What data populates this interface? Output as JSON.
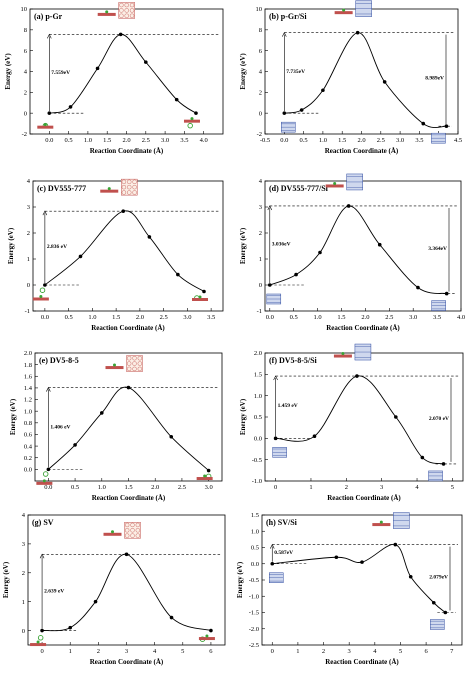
{
  "chart_data": [
    {
      "type": "line",
      "title": "(a) p-Gr",
      "xlabel": "Reaction Coordinate (Å)",
      "ylabel": "Energy (eV)",
      "xlim": [
        -0.5,
        4.5
      ],
      "ylim": [
        -2,
        10
      ],
      "xticks": [
        "0.0",
        "0.5",
        "1.0",
        "1.5",
        "2.0",
        "2.5",
        "3.0",
        "3.5",
        "4.0"
      ],
      "yticks": [
        "-2",
        "0",
        "2",
        "4",
        "6",
        "8",
        "10"
      ],
      "barrier_label": "7.559eV",
      "series": [
        {
          "x": [
            0.0,
            0.55,
            1.25,
            1.85,
            2.5,
            3.3,
            3.8
          ],
          "y": [
            0.0,
            0.6,
            4.3,
            7.56,
            4.9,
            1.3,
            0.0
          ]
        }
      ],
      "markers": [
        {
          "x": -0.1,
          "y": -1.2
        },
        {
          "x": 3.65,
          "y": -1.2
        }
      ]
    },
    {
      "type": "line",
      "title": "(b) p-Gr/Si",
      "xlabel": "Reaction Coordinate (Å)",
      "ylabel": "Energy (eV)",
      "xlim": [
        -0.5,
        4.5
      ],
      "ylim": [
        -2,
        10
      ],
      "xticks": [
        "-0.5",
        "0.0",
        "0.5",
        "1.0",
        "1.5",
        "2.0",
        "2.5",
        "3.0",
        "3.5",
        "4.0",
        "4.5"
      ],
      "yticks": [
        "-2",
        "0",
        "2",
        "4",
        "6",
        "8",
        "10"
      ],
      "barrier_label_left": "7.735eV",
      "barrier_label_right": "8.989eV",
      "series": [
        {
          "x": [
            0.0,
            0.45,
            1.0,
            1.9,
            2.6,
            3.6,
            4.2
          ],
          "y": [
            0.0,
            0.3,
            2.2,
            7.73,
            3.0,
            -1.0,
            -1.25
          ]
        }
      ]
    },
    {
      "type": "line",
      "title": "(c) DV555-777",
      "xlabel": "Reaction Coordinate (Å)",
      "ylabel": "Energy (eV)",
      "xlim": [
        -0.25,
        3.75
      ],
      "ylim": [
        -1,
        4
      ],
      "xticks": [
        "0.0",
        "0.5",
        "1.0",
        "1.5",
        "2.0",
        "2.5",
        "3.0",
        "3.5"
      ],
      "yticks": [
        "-1",
        "0",
        "1",
        "2",
        "3",
        "4"
      ],
      "barrier_label": "2.836 eV",
      "series": [
        {
          "x": [
            0.0,
            0.75,
            1.65,
            2.2,
            2.8,
            3.35
          ],
          "y": [
            0.0,
            1.1,
            2.84,
            1.85,
            0.4,
            -0.25
          ]
        }
      ],
      "markers": [
        {
          "x": -0.05,
          "y": -0.2
        },
        {
          "x": 3.2,
          "y": -0.5
        }
      ]
    },
    {
      "type": "line",
      "title": "(d) DV555-777/Si",
      "xlabel": "Reaction Coordinate (Å)",
      "ylabel": "Energy (eV)",
      "xlim": [
        -0.1,
        4.0
      ],
      "ylim": [
        -1,
        4
      ],
      "xticks": [
        "0.0",
        "0.5",
        "1.0",
        "1.5",
        "2.0",
        "2.5",
        "3.0",
        "3.5",
        "4.0"
      ],
      "yticks": [
        "-1",
        "0",
        "1",
        "2",
        "3",
        "4"
      ],
      "barrier_label_left": "3.036eV",
      "barrier_label_right": "3.364eV",
      "series": [
        {
          "x": [
            0.0,
            0.55,
            1.05,
            1.65,
            2.3,
            3.1,
            3.7
          ],
          "y": [
            0.0,
            0.4,
            1.25,
            3.04,
            1.55,
            -0.1,
            -0.33
          ]
        }
      ]
    },
    {
      "type": "line",
      "title": "(e) DV5-8-5",
      "xlabel": "Reaction Coordinate (Å)",
      "ylabel": "Energy (eV)",
      "xlim": [
        -0.25,
        3.25
      ],
      "ylim": [
        -0.2,
        2.0
      ],
      "xticks": [
        "0.0",
        "0.5",
        "1.0",
        "1.5",
        "2.0",
        "2.5",
        "3.0"
      ],
      "yticks": [
        "0.0",
        "0.2",
        "0.4",
        "0.6",
        "0.8",
        "1.0",
        "1.2",
        "1.4",
        "1.6",
        "1.8",
        "2.0"
      ],
      "barrier_label": "1.406 eV",
      "series": [
        {
          "x": [
            0.0,
            0.5,
            1.0,
            1.5,
            2.3,
            3.0
          ],
          "y": [
            0.0,
            0.42,
            0.97,
            1.406,
            0.56,
            -0.02
          ]
        }
      ],
      "markers": [
        {
          "x": -0.05,
          "y": -0.08
        },
        {
          "x": 3.0,
          "y": -0.12
        }
      ]
    },
    {
      "type": "line",
      "title": "(f) DV5-8-5/Si",
      "xlabel": "Reaction Coordinate (Å)",
      "ylabel": "Energy (eV)",
      "xlim": [
        -0.3,
        5.3
      ],
      "ylim": [
        -1.0,
        2.0
      ],
      "xticks": [
        "0",
        "1",
        "2",
        "3",
        "4",
        "5"
      ],
      "yticks": [
        "-1.0",
        "-0.5",
        "0.0",
        "0.5",
        "1.0",
        "1.5",
        "2.0"
      ],
      "barrier_label_left": "1.459 eV",
      "barrier_label_right": "2.070 eV",
      "series": [
        {
          "x": [
            0.0,
            1.1,
            2.3,
            3.4,
            4.15,
            4.75
          ],
          "y": [
            0.0,
            0.05,
            1.46,
            0.5,
            -0.45,
            -0.6
          ]
        }
      ]
    },
    {
      "type": "line",
      "title": "(g) SV",
      "xlabel": "Reaction Coordinate (Å)",
      "ylabel": "Energy (eV)",
      "xlim": [
        -0.5,
        6.5
      ],
      "ylim": [
        -0.5,
        4.0
      ],
      "xticks": [
        "0",
        "1",
        "2",
        "3",
        "4",
        "5",
        "6"
      ],
      "yticks": [
        "0",
        "1",
        "2",
        "3",
        "4"
      ],
      "barrier_label": "2.639 eV",
      "series": [
        {
          "x": [
            0.0,
            1.0,
            1.9,
            3.0,
            4.6,
            6.0
          ],
          "y": [
            0.0,
            0.1,
            1.0,
            2.64,
            0.45,
            0.0
          ]
        }
      ],
      "markers": [
        {
          "x": -0.05,
          "y": -0.25
        },
        {
          "x": 5.7,
          "y": -0.3
        }
      ]
    },
    {
      "type": "line",
      "title": "(h) SV/Si",
      "xlabel": "Reaction Coordinate (Å)",
      "ylabel": "Energy (eV)",
      "xlim": [
        -0.4,
        7.4
      ],
      "ylim": [
        -2.5,
        1.5
      ],
      "xticks": [
        "0",
        "1",
        "2",
        "3",
        "4",
        "5",
        "6",
        "7"
      ],
      "yticks": [
        "-2.5",
        "-2.0",
        "-1.5",
        "-1.0",
        "-0.5",
        "0.0",
        "0.5",
        "1.0",
        "1.5"
      ],
      "barrier_label_left": "0.587eV",
      "barrier_label_right": "2.079eV",
      "series": [
        {
          "x": [
            0.0,
            2.5,
            3.5,
            4.8,
            5.4,
            6.3,
            6.75
          ],
          "y": [
            0.0,
            0.2,
            0.05,
            0.59,
            -0.4,
            -1.2,
            -1.5
          ]
        }
      ]
    }
  ]
}
